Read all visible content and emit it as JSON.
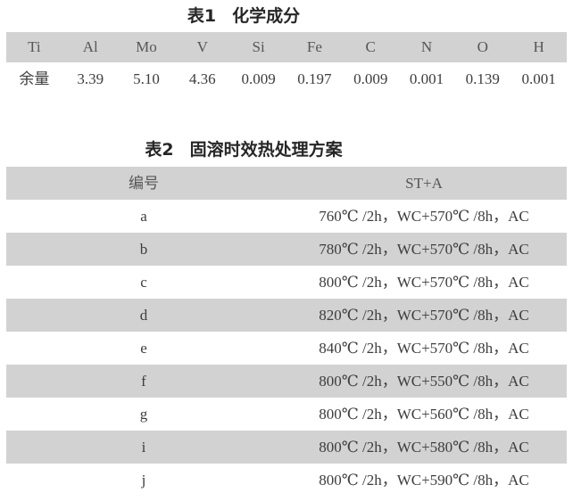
{
  "colors": {
    "band": "#d2d2d2",
    "text": "#3d3d3d",
    "title_text": "#262626"
  },
  "table1": {
    "title_label": "表1",
    "title_name": "化学成分",
    "headers": [
      "Ti",
      "Al",
      "Mo",
      "V",
      "Si",
      "Fe",
      "C",
      "N",
      "O",
      "H"
    ],
    "values": [
      "余量",
      "3.39",
      "5.10",
      "4.36",
      "0.009",
      "0.197",
      "0.009",
      "0.001",
      "0.139",
      "0.001"
    ]
  },
  "table2": {
    "title_label": "表2",
    "title_name": "固溶时效热处理方案",
    "headers": [
      "编号",
      "ST+A"
    ],
    "rows": [
      {
        "id": "a",
        "treatment": "760℃ /2h，WC+570℃ /8h，AC"
      },
      {
        "id": "b",
        "treatment": "780℃ /2h，WC+570℃ /8h，AC"
      },
      {
        "id": "c",
        "treatment": "800℃ /2h，WC+570℃ /8h，AC"
      },
      {
        "id": "d",
        "treatment": "820℃ /2h，WC+570℃ /8h，AC"
      },
      {
        "id": "e",
        "treatment": "840℃ /2h，WC+570℃ /8h，AC"
      },
      {
        "id": "f",
        "treatment": "800℃ /2h，WC+550℃ /8h，AC"
      },
      {
        "id": "g",
        "treatment": "800℃ /2h，WC+560℃ /8h，AC"
      },
      {
        "id": "i",
        "treatment": "800℃ /2h，WC+580℃ /8h，AC"
      },
      {
        "id": "j",
        "treatment": "800℃ /2h，WC+590℃ /8h，AC"
      }
    ]
  }
}
